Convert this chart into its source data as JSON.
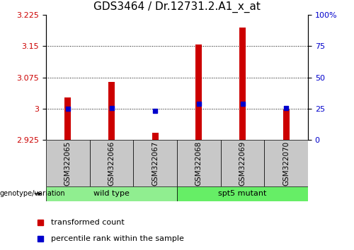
{
  "title": "GDS3464 / Dr.12731.2.A1_x_at",
  "samples": [
    "GSM322065",
    "GSM322066",
    "GSM322067",
    "GSM322068",
    "GSM322069",
    "GSM322070"
  ],
  "red_values": [
    3.027,
    3.065,
    2.943,
    3.155,
    3.195,
    2.998
  ],
  "blue_values": [
    3.0,
    3.001,
    2.995,
    3.012,
    3.012,
    3.001
  ],
  "ymin": 2.925,
  "ymax": 3.225,
  "yticks_left": [
    2.925,
    3.0,
    3.075,
    3.15,
    3.225
  ],
  "yticks_right_vals": [
    2.925,
    3.0,
    3.075,
    3.15,
    3.225
  ],
  "yticks_right_labels": [
    "0",
    "25",
    "50",
    "75",
    "100%"
  ],
  "dotted_lines": [
    3.0,
    3.075,
    3.15
  ],
  "red_color": "#CC0000",
  "blue_color": "#0000CC",
  "legend_red": "transformed count",
  "legend_blue": "percentile rank within the sample",
  "xlabel_group": "genotype/variation",
  "title_fontsize": 11,
  "tick_label_fontsize": 8,
  "group_label_fontsize": 8,
  "bar_width": 0.15,
  "wt_color": "#90EE90",
  "mt_color": "#66EE66",
  "gray_color": "#C8C8C8"
}
